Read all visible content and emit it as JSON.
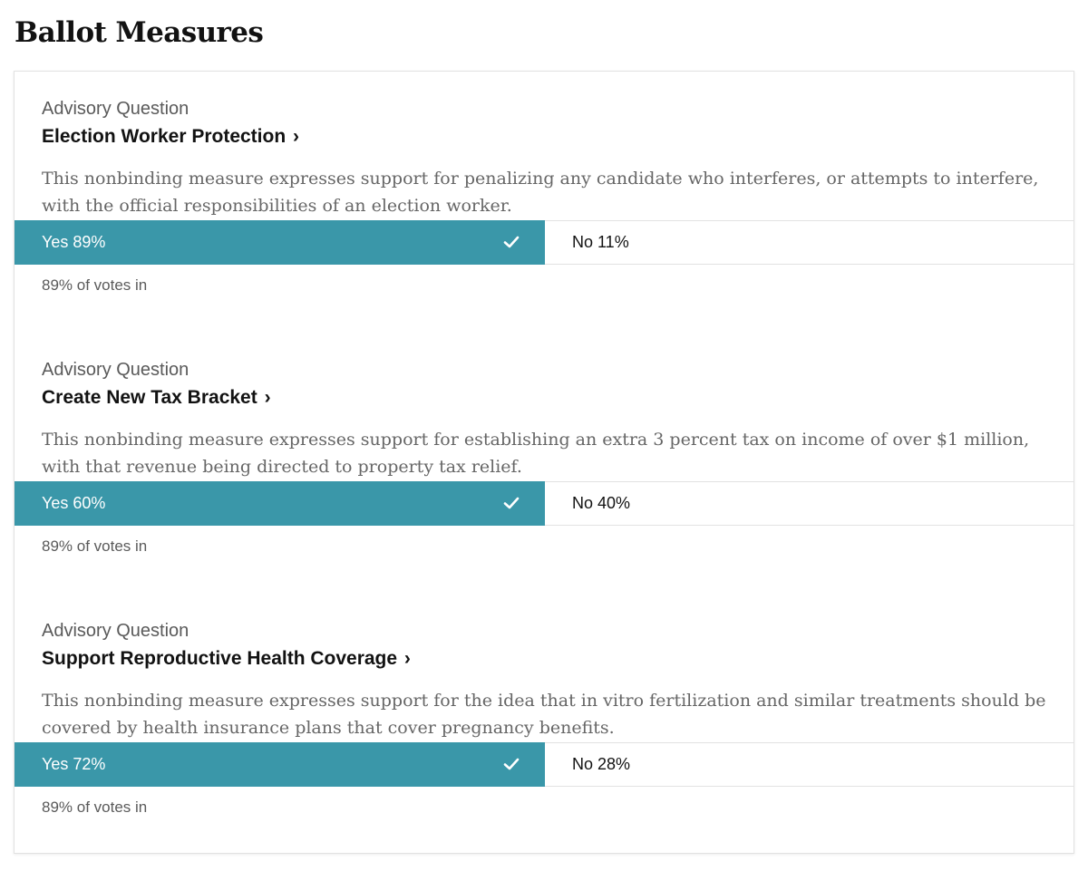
{
  "page": {
    "title": "Ballot Measures"
  },
  "colors": {
    "yes_bar": "#3a97a9",
    "title_text": "#121212",
    "muted_text": "#666666",
    "border": "#e2e2e2"
  },
  "measures": [
    {
      "type": "Advisory Question",
      "title": "Election Worker Protection",
      "chevron": "›",
      "description": "This nonbinding measure expresses support for penalizing any candidate who interferes, or attempts to interfere, with the official responsibilities of an election worker.",
      "yes_label": "Yes 89%",
      "yes_percent": 89,
      "no_label": "No 11%",
      "no_percent": 11,
      "winner": "Yes",
      "winner_icon": "checkmark-icon",
      "votes_in": "89% of votes in"
    },
    {
      "type": "Advisory Question",
      "title": "Create New Tax Bracket",
      "chevron": "›",
      "description": "This nonbinding measure expresses support for establishing an extra 3 percent tax on income of over $1 million, with that revenue being directed to property tax relief.",
      "yes_label": "Yes 60%",
      "yes_percent": 60,
      "no_label": "No 40%",
      "no_percent": 40,
      "winner": "Yes",
      "winner_icon": "checkmark-icon",
      "votes_in": "89% of votes in"
    },
    {
      "type": "Advisory Question",
      "title": "Support Reproductive Health Coverage",
      "chevron": "›",
      "description": "This nonbinding measure expresses support for the idea that in vitro fertilization and similar treatments should be covered by health insurance plans that cover pregnancy benefits.",
      "yes_label": "Yes 72%",
      "yes_percent": 72,
      "no_label": "No 28%",
      "no_percent": 28,
      "winner": "Yes",
      "winner_icon": "checkmark-icon",
      "votes_in": "89% of votes in"
    }
  ]
}
